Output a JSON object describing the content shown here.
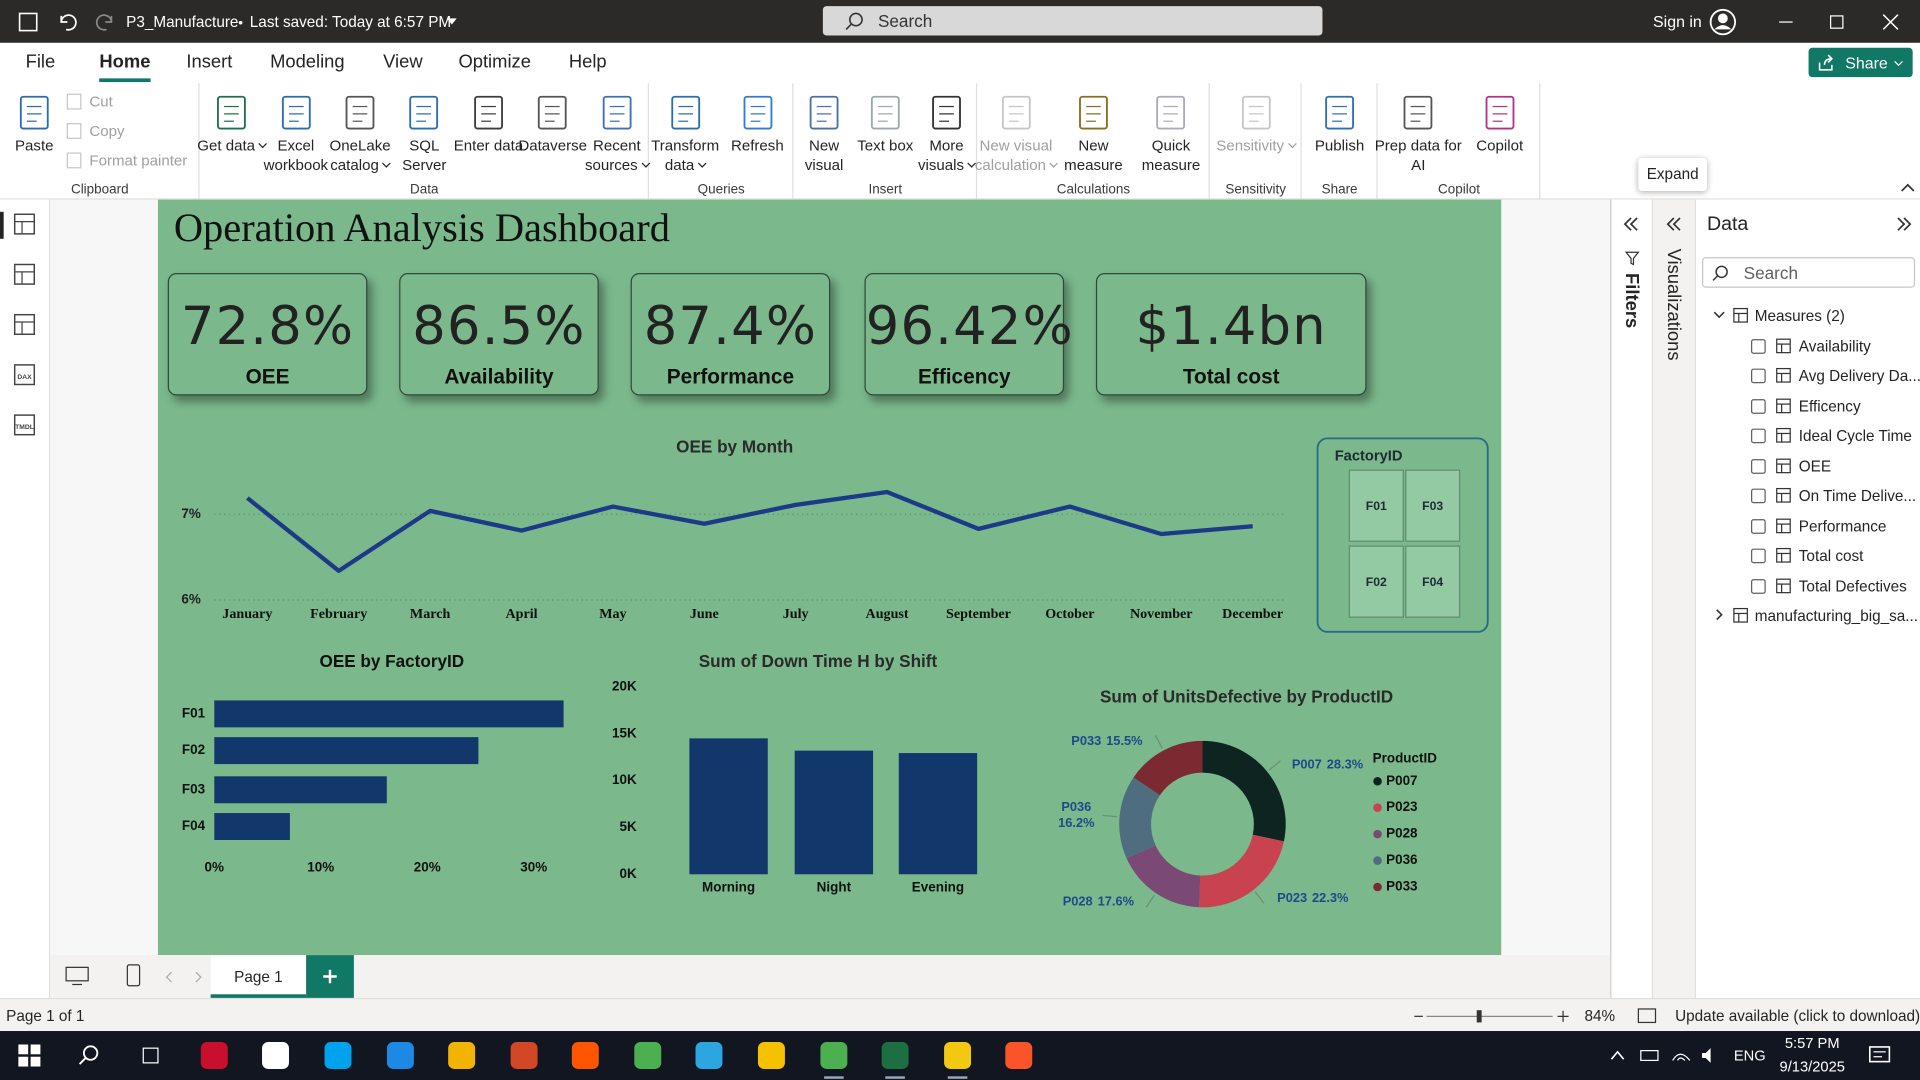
{
  "titlebar": {
    "file": "P3_Manufacture",
    "saved": "Last saved: Today at 6:57 PM",
    "search": "Search",
    "sign_in": "Sign in"
  },
  "menu": {
    "tabs": [
      "File",
      "Home",
      "Insert",
      "Modeling",
      "View",
      "Optimize",
      "Help"
    ],
    "active": "Home",
    "share": "Share"
  },
  "ribbon": {
    "groups": [
      {
        "name": "Clipboard",
        "buttons": [
          {
            "label": "Paste"
          }
        ],
        "small_buttons": [
          {
            "label": "Cut",
            "disabled": true
          },
          {
            "label": "Copy",
            "disabled": true
          },
          {
            "label": "Format painter",
            "disabled": true
          }
        ]
      },
      {
        "name": "Data",
        "buttons": [
          {
            "label": "Get data",
            "menu": true
          },
          {
            "label": "Excel workbook"
          },
          {
            "label": "OneLake catalog",
            "menu": true
          },
          {
            "label": "SQL Server"
          },
          {
            "label": "Enter data"
          },
          {
            "label": "Dataverse"
          },
          {
            "label": "Recent sources",
            "menu": true
          }
        ]
      },
      {
        "name": "Queries",
        "buttons": [
          {
            "label": "Transform data",
            "menu": true
          },
          {
            "label": "Refresh"
          }
        ]
      },
      {
        "name": "Insert",
        "buttons": [
          {
            "label": "New visual"
          },
          {
            "label": "Text box"
          },
          {
            "label": "More visuals",
            "menu": true
          }
        ]
      },
      {
        "name": "Calculations",
        "buttons": [
          {
            "label": "New visual calculation",
            "menu": true,
            "disabled": true
          },
          {
            "label": "New measure"
          },
          {
            "label": "Quick measure"
          }
        ]
      },
      {
        "name": "Sensitivity",
        "buttons": [
          {
            "label": "Sensitivity",
            "menu": true,
            "disabled": true
          }
        ]
      },
      {
        "name": "Share",
        "buttons": [
          {
            "label": "Publish"
          }
        ]
      },
      {
        "name": "Copilot",
        "buttons": [
          {
            "label": "Prep data for AI"
          },
          {
            "label": "Copilot"
          }
        ]
      }
    ]
  },
  "tooltip": "Expand",
  "left_nav": {
    "icon_labels": [
      "DAX",
      "TMDL"
    ]
  },
  "dashboard": {
    "title": "Operation Analysis Dashboard",
    "kpis": [
      {
        "value": "72.8%",
        "label": "OEE"
      },
      {
        "value": "86.5%",
        "label": "Availability"
      },
      {
        "value": "87.4%",
        "label": "Performance"
      },
      {
        "value": "96.42%",
        "label": "Efficency"
      },
      {
        "value": "$1.4bn",
        "label": "Total cost"
      }
    ],
    "slicer": {
      "title": "FactoryID",
      "options": [
        "F01",
        "F03",
        "F02",
        "F04"
      ]
    },
    "charts": [
      {
        "type": "line",
        "title": "OEE by Month",
        "categories": [
          "January",
          "February",
          "March",
          "April",
          "May",
          "June",
          "July",
          "August",
          "September",
          "October",
          "November",
          "December"
        ],
        "values": [
          7.19,
          6.34,
          7.04,
          6.81,
          7.09,
          6.89,
          7.11,
          7.26,
          6.83,
          7.09,
          6.77,
          6.86
        ],
        "color": "#1c3a85",
        "ylim": [
          6,
          7.4
        ],
        "yticks": [
          {
            "value": 6,
            "label": "6%"
          },
          {
            "value": 7,
            "label": "7%"
          }
        ],
        "grid": true
      },
      {
        "type": "barh",
        "title": "OEE by FactoryID",
        "categories": [
          "F01",
          "F02",
          "F03",
          "F04"
        ],
        "values": [
          32.8,
          24.8,
          16.2,
          7.1
        ],
        "color": "#12376b",
        "xlim": [
          0,
          33
        ],
        "xticks": [
          {
            "value": 0,
            "label": "0%"
          },
          {
            "value": 10,
            "label": "10%"
          },
          {
            "value": 20,
            "label": "20%"
          },
          {
            "value": 30,
            "label": "30%"
          }
        ],
        "grid": false
      },
      {
        "type": "bar",
        "title": "Sum of Down Time H by Shift",
        "categories": [
          "Morning",
          "Night",
          "Evening"
        ],
        "values": [
          14510,
          13200,
          12940
        ],
        "color": "#12376b",
        "ylim": [
          0,
          20000
        ],
        "yticks": [
          {
            "value": 0,
            "label": "0K"
          },
          {
            "value": 5000,
            "label": "5K"
          },
          {
            "value": 10000,
            "label": "10K"
          },
          {
            "value": 15000,
            "label": "15K"
          },
          {
            "value": 20000,
            "label": "20K"
          }
        ],
        "grid": false
      },
      {
        "type": "donut",
        "title": "Sum of UnitsDefective by ProductID",
        "legend_title": "ProductID",
        "categories": [
          "P007",
          "P023",
          "P028",
          "P036",
          "P033"
        ],
        "values": [
          28.3,
          22.3,
          17.6,
          16.2,
          15.5
        ],
        "value_labels": [
          "28.3%",
          "22.3%",
          "17.6%",
          "16.2%",
          "15.5%"
        ],
        "colors": [
          "#0e2421",
          "#c8434f",
          "#7b4a74",
          "#4e6e80",
          "#7a2a30"
        ]
      }
    ]
  },
  "panes": {
    "filters": "Filters",
    "visualizations": "Visualizations",
    "data": {
      "title": "Data",
      "search": "Search",
      "tables": [
        {
          "name": "Measures (2)",
          "expanded": true,
          "fields": [
            "Availability",
            "Avg Delivery Da...",
            "Efficency",
            "Ideal Cycle Time",
            "OEE",
            "On Time Delive...",
            "Performance",
            "Total cost",
            "Total Defectives"
          ]
        },
        {
          "name": "manufacturing_big_sa...",
          "expanded": false
        }
      ]
    }
  },
  "pages": {
    "tabs": [
      "Page 1"
    ]
  },
  "status": {
    "page": "Page 1 of 1",
    "zoom": "84%",
    "update": "Update available (click to download)"
  },
  "taskbar": {
    "language": "ENG",
    "time": "5:57 PM",
    "date": "9/13/2025"
  }
}
